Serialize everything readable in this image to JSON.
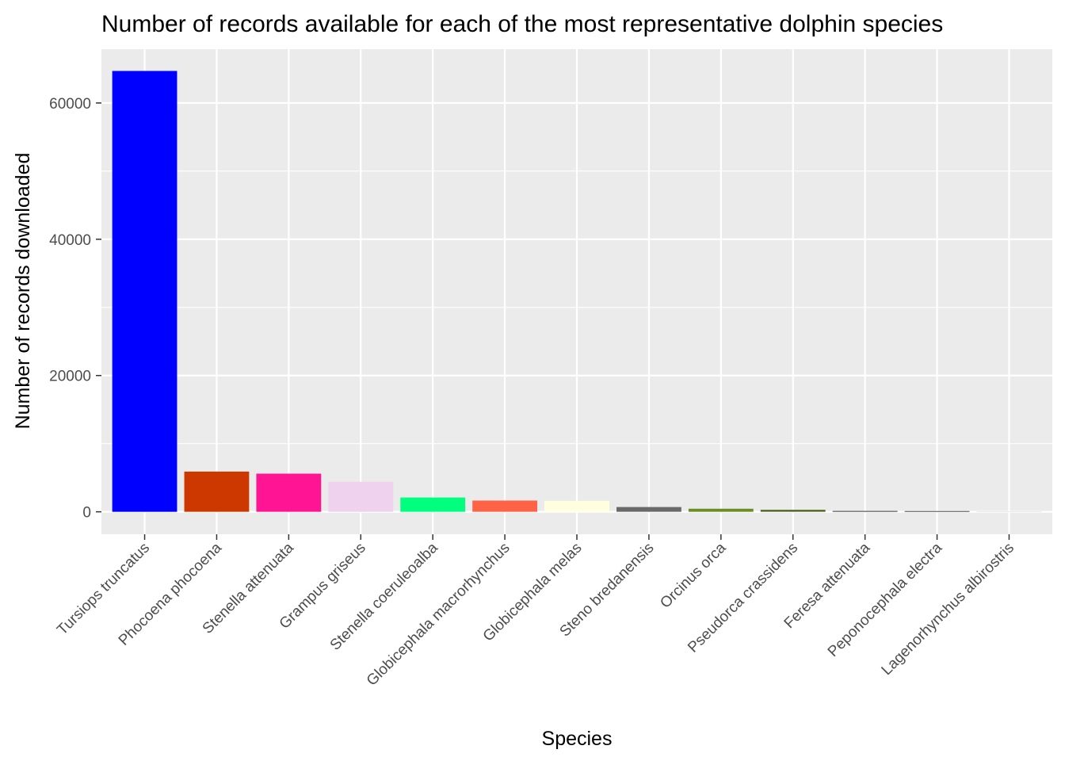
{
  "chart_data": {
    "type": "bar",
    "title": "Number of records available for each of the most representative dolphin species",
    "xlabel": "Species",
    "ylabel": "Number of records downloaded",
    "categories": [
      "Tursiops truncatus",
      "Phocoena phocoena",
      "Stenella attenuata",
      "Grampus griseus",
      "Stenella coeruleoalba",
      "Globicephala macrorhynchus",
      "Globicephala melas",
      "Steno bredanensis",
      "Orcinus orca",
      "Pseudorca crassidens",
      "Feresa attenuata",
      "Peponocephala electra",
      "Lagenorhynchus albirostris"
    ],
    "values": [
      64700,
      5900,
      5600,
      4400,
      2100,
      1650,
      1600,
      700,
      450,
      300,
      120,
      100,
      20
    ],
    "colors": [
      "#0000ff",
      "#cd3700",
      "#ff1493",
      "#eed2ee",
      "#00ff7f",
      "#ff6347",
      "#ffffe0",
      "#696969",
      "#6b8e23",
      "#556b2f",
      "#3a3a3a",
      "#2a2a2a",
      "#d3d3d3"
    ],
    "ylim": [
      -3300,
      67900
    ],
    "yticks": [
      0,
      20000,
      40000,
      60000
    ],
    "grid": true,
    "panel_background": "#ebebeb",
    "grid_color": "#ffffff"
  }
}
